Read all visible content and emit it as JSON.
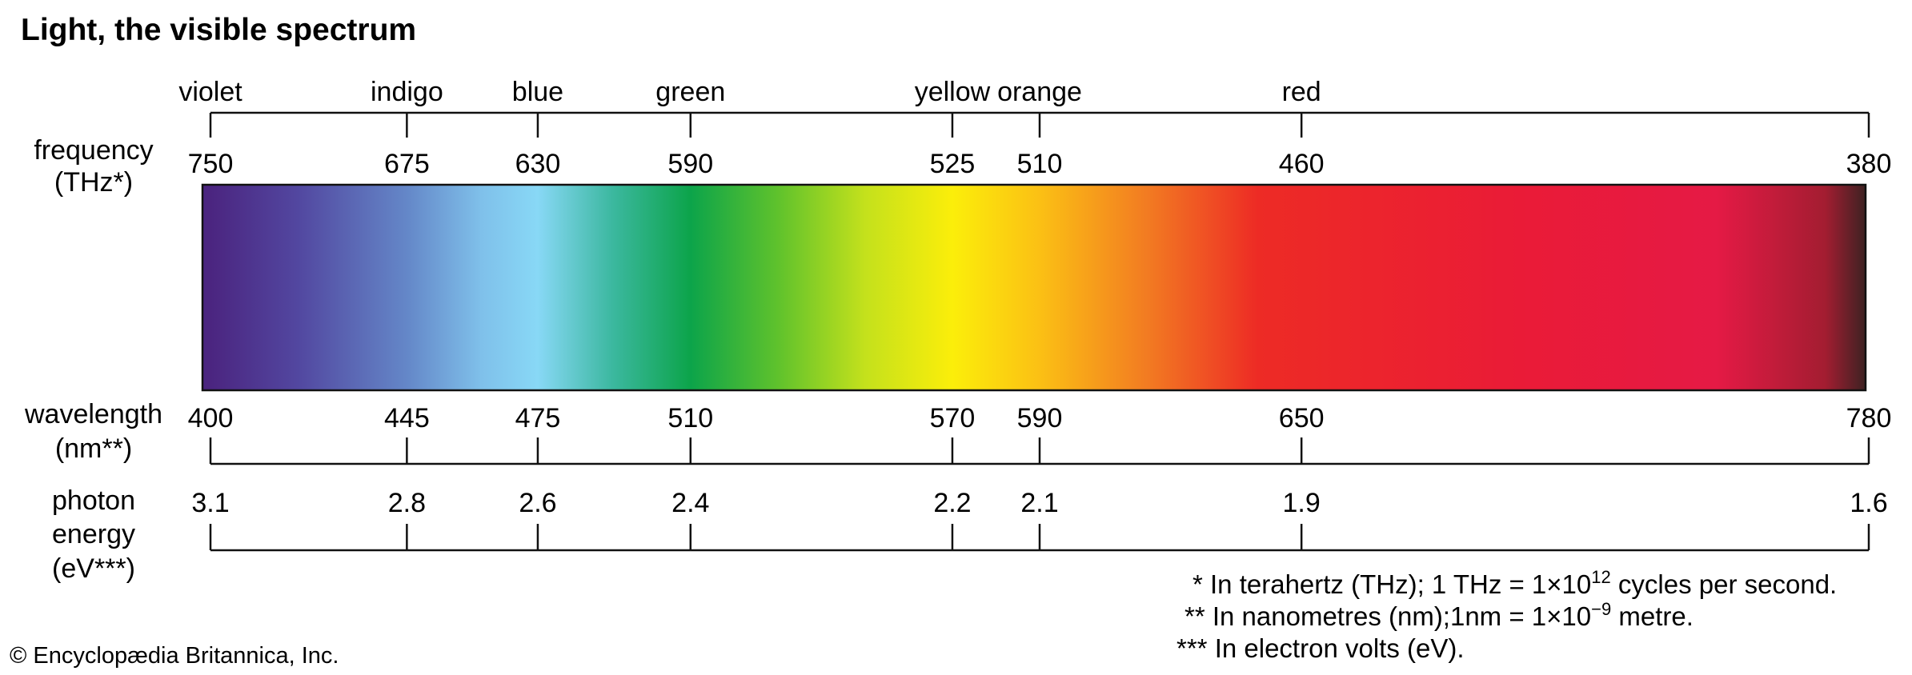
{
  "title": "Light, the visible spectrum",
  "color_names": [
    {
      "name": "violet",
      "at": 400
    },
    {
      "name": "indigo",
      "at": 445
    },
    {
      "name": "blue",
      "at": 475
    },
    {
      "name": "green",
      "at": 510
    },
    {
      "name": "yellow",
      "at": 570
    },
    {
      "name": "orange",
      "at": 590
    },
    {
      "name": "red",
      "at": 650
    }
  ],
  "frequency": {
    "label_lines": [
      "frequency",
      "(THz*)"
    ],
    "ticks": [
      {
        "value": "750",
        "at": 400
      },
      {
        "value": "675",
        "at": 445
      },
      {
        "value": "630",
        "at": 475
      },
      {
        "value": "590",
        "at": 510
      },
      {
        "value": "525",
        "at": 570
      },
      {
        "value": "510",
        "at": 590
      },
      {
        "value": "460",
        "at": 650
      },
      {
        "value": "380",
        "at": 780
      }
    ]
  },
  "wavelength": {
    "label_lines": [
      "wavelength",
      "(nm**)"
    ],
    "ticks": [
      {
        "value": "400",
        "at": 400
      },
      {
        "value": "445",
        "at": 445
      },
      {
        "value": "475",
        "at": 475
      },
      {
        "value": "510",
        "at": 510
      },
      {
        "value": "570",
        "at": 570
      },
      {
        "value": "590",
        "at": 590
      },
      {
        "value": "650",
        "at": 650
      },
      {
        "value": "780",
        "at": 780
      }
    ]
  },
  "photon_energy": {
    "label_lines": [
      "photon",
      "energy",
      "(eV***)"
    ],
    "ticks": [
      {
        "value": "3.1",
        "at": 400
      },
      {
        "value": "2.8",
        "at": 445
      },
      {
        "value": "2.6",
        "at": 475
      },
      {
        "value": "2.4",
        "at": 510
      },
      {
        "value": "2.2",
        "at": 570
      },
      {
        "value": "2.1",
        "at": 590
      },
      {
        "value": "1.9",
        "at": 650
      },
      {
        "value": "1.6",
        "at": 780
      }
    ]
  },
  "spectrum_colors": [
    {
      "nm": 400,
      "color": "#4b2580"
    },
    {
      "nm": 420,
      "color": "#5247a0"
    },
    {
      "nm": 445,
      "color": "#6487c8"
    },
    {
      "nm": 462,
      "color": "#7fc0ea"
    },
    {
      "nm": 475,
      "color": "#88d8f6"
    },
    {
      "nm": 492,
      "color": "#3cb8a0"
    },
    {
      "nm": 510,
      "color": "#0ca44a"
    },
    {
      "nm": 530,
      "color": "#5fc22c"
    },
    {
      "nm": 550,
      "color": "#c4e11c"
    },
    {
      "nm": 570,
      "color": "#fbee0a"
    },
    {
      "nm": 590,
      "color": "#fbc014"
    },
    {
      "nm": 615,
      "color": "#f27a22"
    },
    {
      "nm": 640,
      "color": "#ed2b25"
    },
    {
      "nm": 700,
      "color": "#ea1b37"
    },
    {
      "nm": 745,
      "color": "#e51a45"
    },
    {
      "nm": 770,
      "color": "#a31d31"
    },
    {
      "nm": 780,
      "color": "#3d2222"
    }
  ],
  "footnotes": [
    {
      "marker": "*",
      "text": "In terahertz (THz); 1 THz = 1×10",
      "sup": "12",
      "tail": " cycles per second."
    },
    {
      "marker": "**",
      "text": "In nanometres (nm);1nm = 1×10",
      "sup": "−9",
      "tail": " metre."
    },
    {
      "marker": "***",
      "text": "In electron volts (eV).",
      "sup": "",
      "tail": ""
    }
  ],
  "copyright": "© Encyclopædia Britannica, Inc."
}
